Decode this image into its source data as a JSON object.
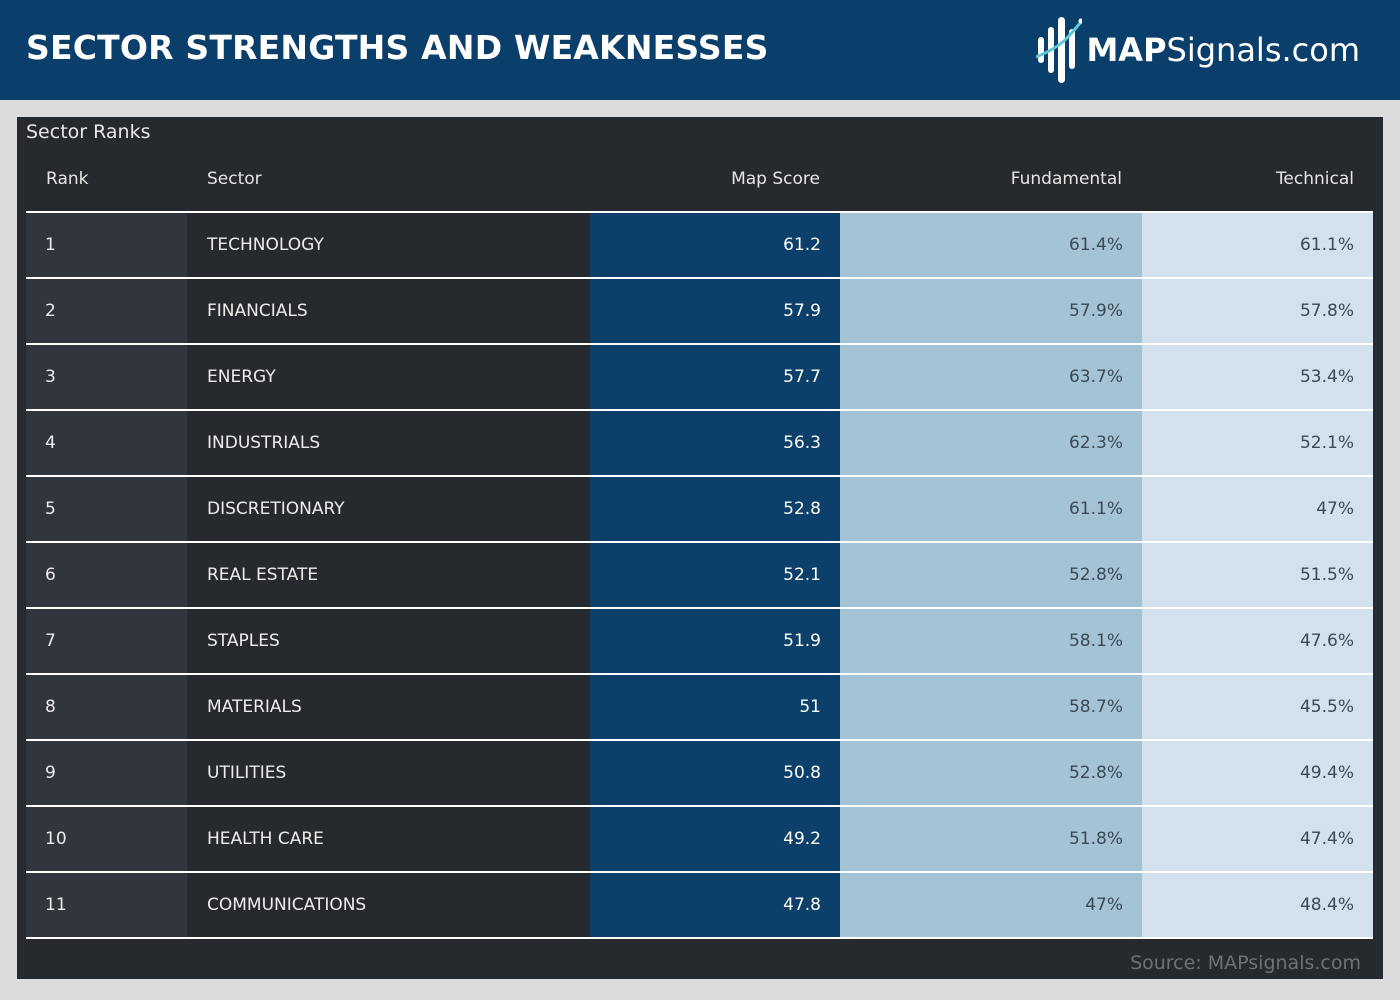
{
  "header": {
    "title": "SECTOR STRENGTHS AND WEAKNESSES",
    "logo_bold": "MAP",
    "logo_rest": "Signals.com"
  },
  "panel": {
    "title": "Sector Ranks",
    "source": "Source: MAPsignals.com"
  },
  "colors": {
    "header_bg": "#0b3f6b",
    "panel_bg": "#262a2f",
    "map_score_bg": "#0c3f69",
    "fundamental_bg": "#a4c3d4",
    "technical_bg": "#d3e1ee"
  },
  "chart_data": {
    "type": "table",
    "title": "Sector Ranks",
    "columns": [
      "Rank",
      "Sector",
      "Map Score",
      "Fundamental",
      "Technical"
    ],
    "rows": [
      {
        "rank": "1",
        "sector": "TECHNOLOGY",
        "map_score": "61.2",
        "fundamental": "61.4%",
        "technical": "61.1%"
      },
      {
        "rank": "2",
        "sector": "FINANCIALS",
        "map_score": "57.9",
        "fundamental": "57.9%",
        "technical": "57.8%"
      },
      {
        "rank": "3",
        "sector": "ENERGY",
        "map_score": "57.7",
        "fundamental": "63.7%",
        "technical": "53.4%"
      },
      {
        "rank": "4",
        "sector": "INDUSTRIALS",
        "map_score": "56.3",
        "fundamental": "62.3%",
        "technical": "52.1%"
      },
      {
        "rank": "5",
        "sector": "DISCRETIONARY",
        "map_score": "52.8",
        "fundamental": "61.1%",
        "technical": "47%"
      },
      {
        "rank": "6",
        "sector": "REAL ESTATE",
        "map_score": "52.1",
        "fundamental": "52.8%",
        "technical": "51.5%"
      },
      {
        "rank": "7",
        "sector": "STAPLES",
        "map_score": "51.9",
        "fundamental": "58.1%",
        "technical": "47.6%"
      },
      {
        "rank": "8",
        "sector": "MATERIALS",
        "map_score": "51",
        "fundamental": "58.7%",
        "technical": "45.5%"
      },
      {
        "rank": "9",
        "sector": "UTILITIES",
        "map_score": "50.8",
        "fundamental": "52.8%",
        "technical": "49.4%"
      },
      {
        "rank": "10",
        "sector": "HEALTH CARE",
        "map_score": "49.2",
        "fundamental": "51.8%",
        "technical": "47.4%"
      },
      {
        "rank": "11",
        "sector": "COMMUNICATIONS",
        "map_score": "47.8",
        "fundamental": "47%",
        "technical": "48.4%"
      }
    ]
  }
}
